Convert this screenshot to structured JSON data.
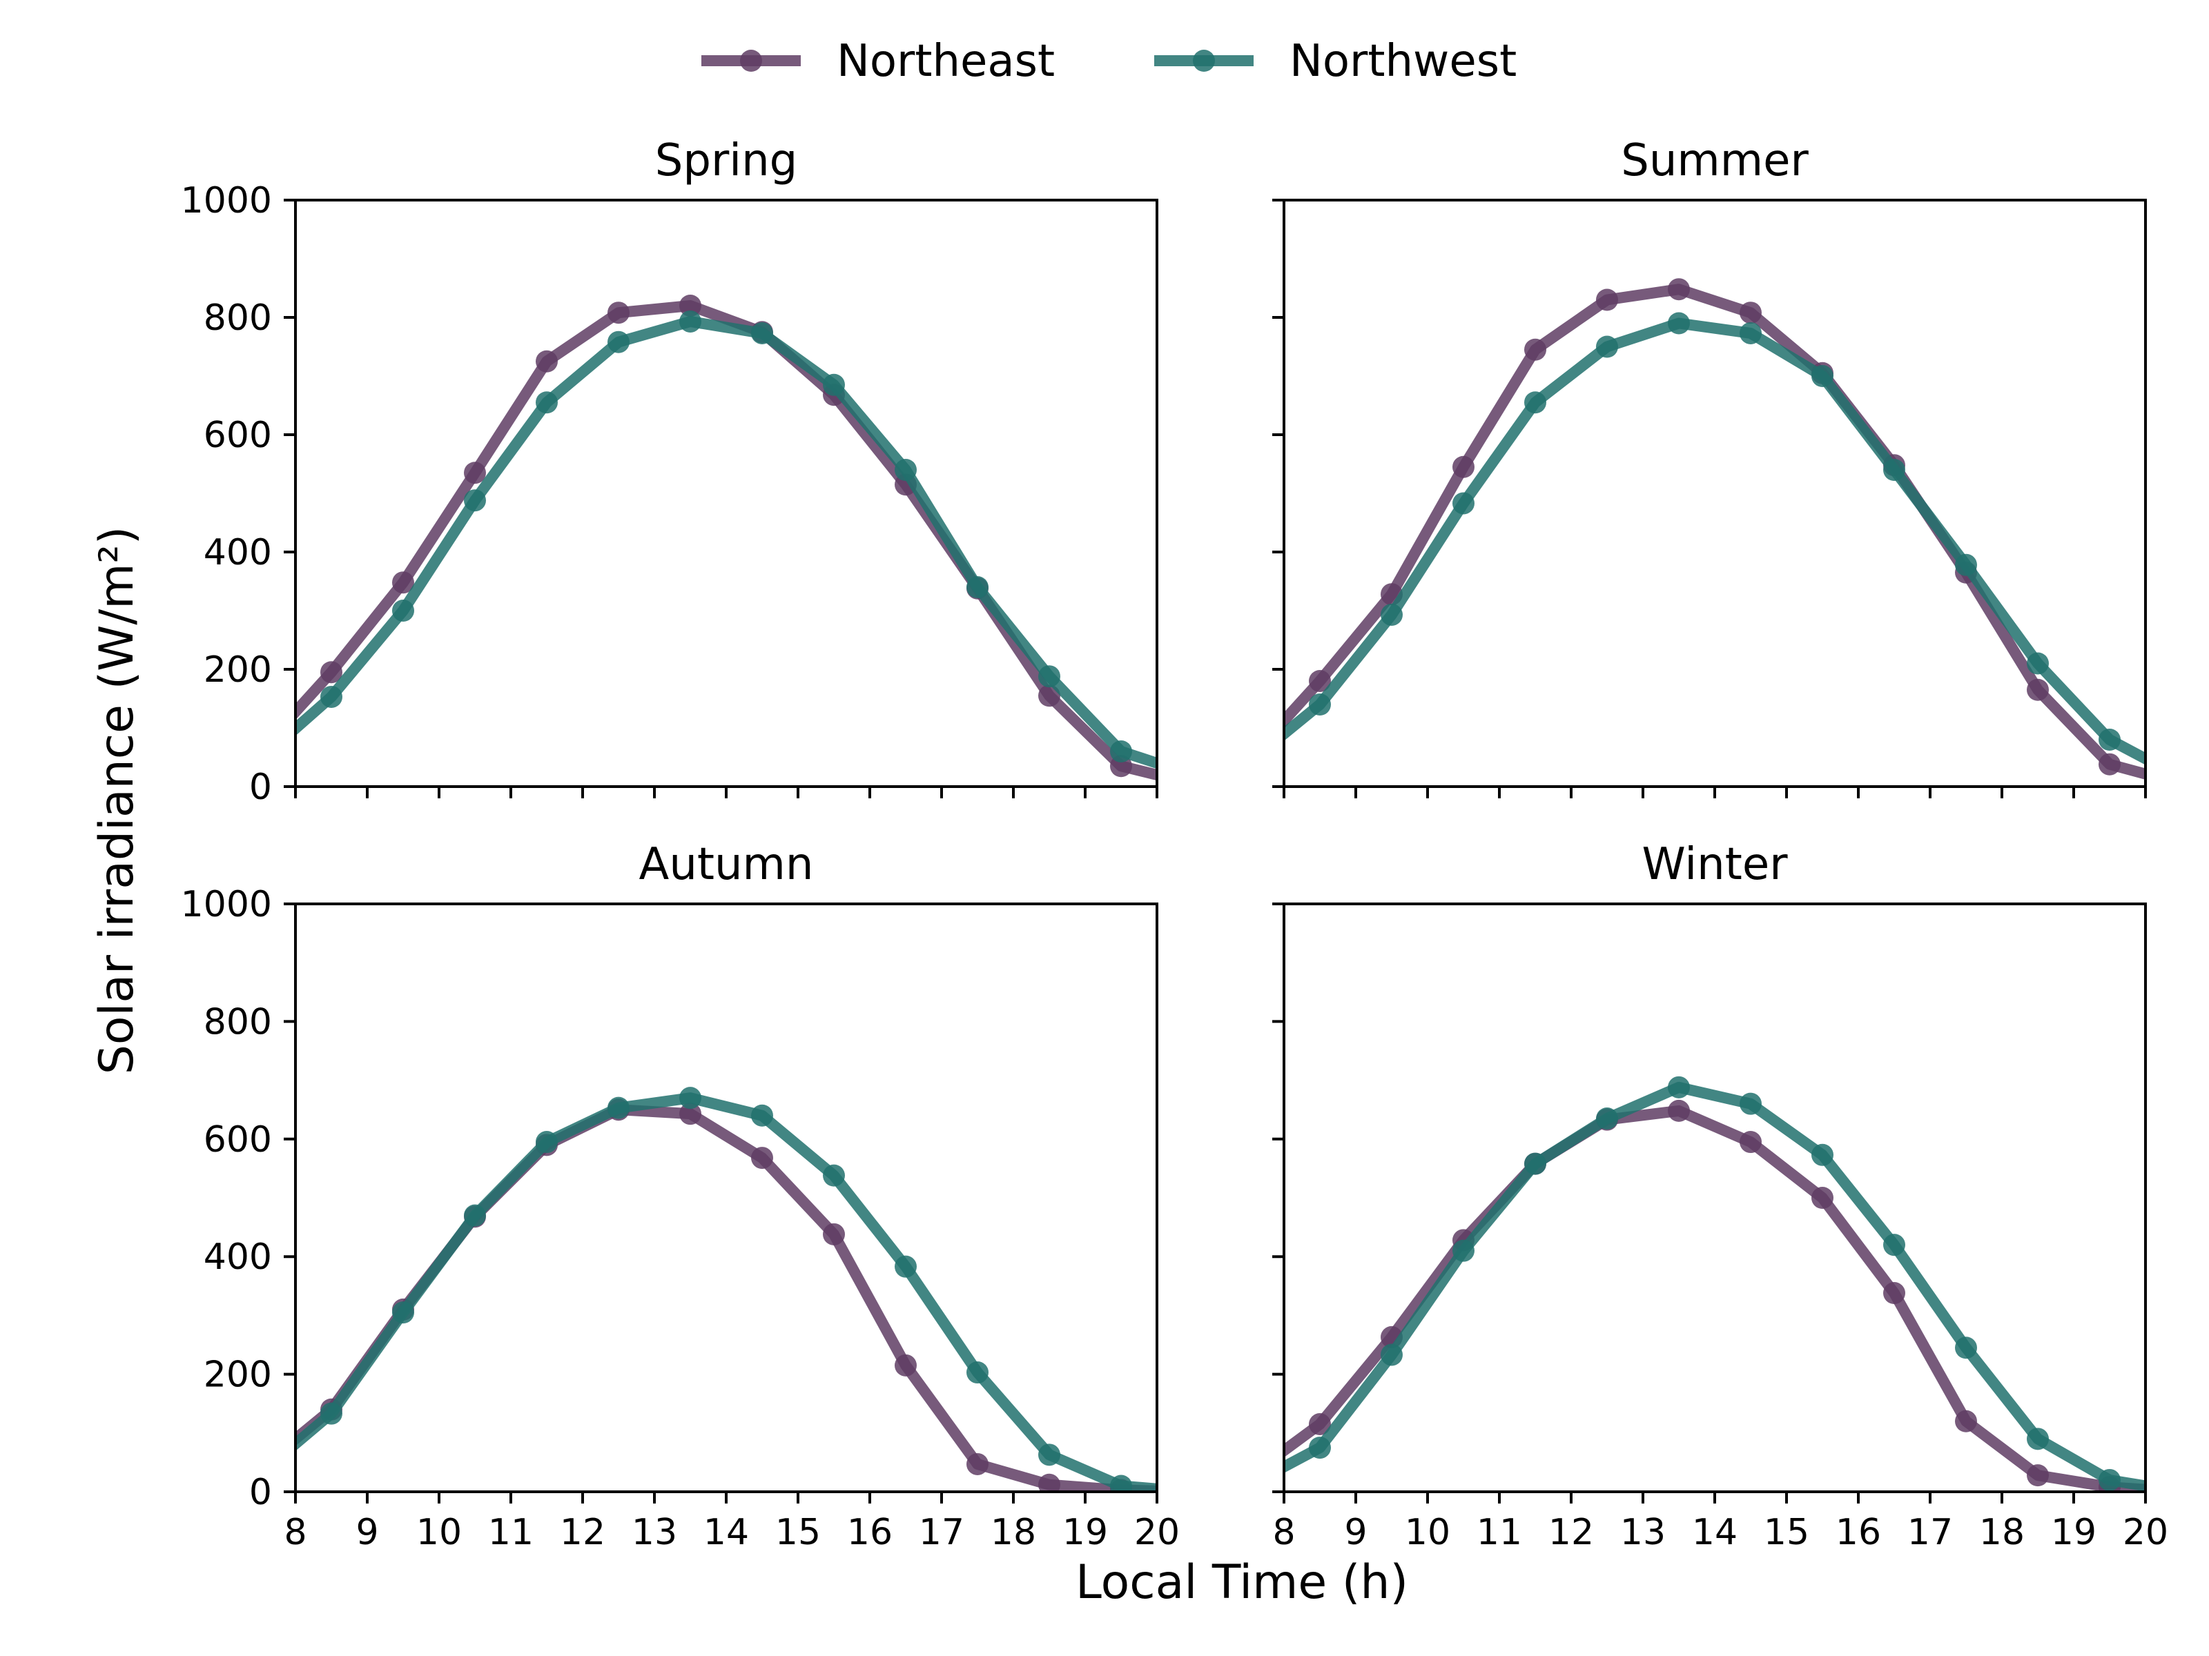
{
  "chart_data": [
    {
      "type": "line",
      "title": "Spring",
      "xlim": [
        8,
        20
      ],
      "ylim": [
        0,
        1000
      ],
      "x": [
        7.5,
        8.5,
        9.5,
        10.5,
        11.5,
        12.5,
        13.5,
        14.5,
        15.5,
        16.5,
        17.5,
        18.5,
        19.5,
        20.5
      ],
      "series": [
        {
          "name": "Northeast",
          "values": [
            60,
            195,
            348,
            535,
            725,
            808,
            820,
            775,
            668,
            515,
            338,
            155,
            35,
            5
          ]
        },
        {
          "name": "Northwest",
          "values": [
            45,
            153,
            300,
            488,
            655,
            758,
            793,
            773,
            685,
            540,
            340,
            188,
            60,
            20
          ]
        }
      ]
    },
    {
      "type": "line",
      "title": "Summer",
      "xlim": [
        8,
        20
      ],
      "ylim": [
        0,
        1000
      ],
      "x": [
        7.5,
        8.5,
        9.5,
        10.5,
        11.5,
        12.5,
        13.5,
        14.5,
        15.5,
        16.5,
        17.5,
        18.5,
        19.5,
        20.5
      ],
      "series": [
        {
          "name": "Northeast",
          "values": [
            45,
            180,
            328,
            545,
            745,
            830,
            848,
            808,
            705,
            548,
            365,
            165,
            38,
            5
          ]
        },
        {
          "name": "Northwest",
          "values": [
            40,
            140,
            293,
            483,
            655,
            750,
            790,
            773,
            700,
            540,
            378,
            210,
            80,
            15
          ]
        }
      ]
    },
    {
      "type": "line",
      "title": "Autumn",
      "xlim": [
        8,
        20
      ],
      "ylim": [
        0,
        1000
      ],
      "x": [
        7.5,
        8.5,
        9.5,
        10.5,
        11.5,
        12.5,
        13.5,
        14.5,
        15.5,
        16.5,
        17.5,
        18.5,
        19.5,
        20.5
      ],
      "series": [
        {
          "name": "Northeast",
          "values": [
            40,
            140,
            310,
            468,
            590,
            650,
            643,
            568,
            438,
            215,
            47,
            12,
            3,
            0
          ]
        },
        {
          "name": "Northwest",
          "values": [
            30,
            133,
            305,
            470,
            595,
            653,
            670,
            640,
            538,
            383,
            203,
            63,
            10,
            0
          ]
        }
      ]
    },
    {
      "type": "line",
      "title": "Winter",
      "xlim": [
        8,
        20
      ],
      "ylim": [
        0,
        1000
      ],
      "x": [
        7.5,
        8.5,
        9.5,
        10.5,
        11.5,
        12.5,
        13.5,
        14.5,
        15.5,
        16.5,
        17.5,
        18.5,
        19.5,
        20.5
      ],
      "series": [
        {
          "name": "Northeast",
          "values": [
            25,
            115,
            263,
            428,
            558,
            633,
            648,
            595,
            500,
            338,
            120,
            28,
            8,
            0
          ]
        },
        {
          "name": "Northwest",
          "values": [
            10,
            75,
            233,
            410,
            558,
            635,
            688,
            660,
            573,
            420,
            245,
            90,
            20,
            0
          ]
        }
      ]
    }
  ],
  "legend": [
    {
      "label": "Northeast",
      "color": "#5f3d64",
      "alpha": 0.85,
      "marker": "circle"
    },
    {
      "label": "Northwest",
      "color": "#21716d",
      "alpha": 0.85,
      "marker": "circle"
    }
  ],
  "legend_position": "top-center",
  "shared_xlabel": "Local Time (h)",
  "shared_ylabel": "Solar irradiance (W/m²)",
  "x_ticks": [
    8,
    9,
    10,
    11,
    12,
    13,
    14,
    15,
    16,
    17,
    18,
    19,
    20
  ],
  "y_ticks": [
    0,
    200,
    400,
    600,
    800,
    1000
  ],
  "grid": false,
  "layout": "2x2 panels, shared x and y axes"
}
